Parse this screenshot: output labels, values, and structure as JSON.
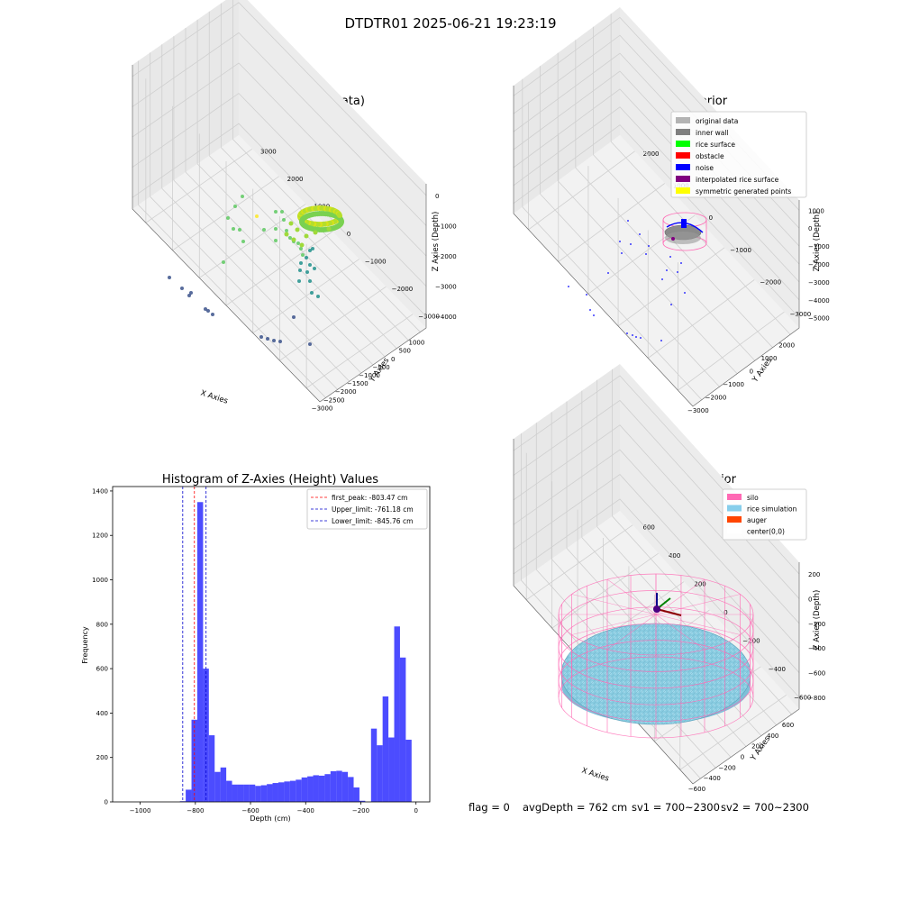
{
  "figure": {
    "suptitle": "DTDTR01 2025-06-21 19:23:19",
    "footer": {
      "flag": "flag = 0",
      "avg_depth": "avgDepth = 762 cm",
      "sv1": "sv1 = 700~2300",
      "sv2": "sv2 = 700~2300"
    }
  },
  "chart_data": [
    {
      "type": "scatter",
      "title": "3D Plot of Silo Interior(row data)",
      "xlabel": "X Axies",
      "ylabel": "Y Axies",
      "zlabel": "Z Axies (Depth)",
      "x_ticks": [
        "−3000",
        "−2500",
        "−2000",
        "−1500",
        "−1000",
        "−500",
        "0",
        "500",
        "1000"
      ],
      "y_ticks": [
        "−3000",
        "−2000",
        "−1000",
        "0",
        "1000",
        "2000",
        "3000"
      ],
      "z_ticks": [
        "0",
        "−1000",
        "−2000",
        "−3000",
        "−4000"
      ],
      "colormap": "viridis",
      "grid": true
    },
    {
      "type": "scatter",
      "title": "3D classify of Silo Interior",
      "xlabel": "X Axies",
      "ylabel": "Y Axies",
      "zlabel": "Z Axies (Depth)",
      "x_ticks": [
        "−3000",
        "−2000",
        "−1000",
        "0",
        "1000",
        "2000"
      ],
      "y_ticks": [
        "−3000",
        "−2000",
        "−1000",
        "0",
        "1000",
        "2000"
      ],
      "z_ticks": [
        "1000",
        "0",
        "−1000",
        "−2000",
        "−3000",
        "−4000",
        "−5000"
      ],
      "legend": [
        {
          "name": "original data",
          "color": "#b3b3b3"
        },
        {
          "name": "inner wall",
          "color": "#808080"
        },
        {
          "name": "rice surface",
          "color": "#00ff00"
        },
        {
          "name": "obstacle",
          "color": "#ff0000"
        },
        {
          "name": "noise",
          "color": "#0000ff"
        },
        {
          "name": "interpolated rice surface",
          "color": "#800080"
        },
        {
          "name": "symmetric generated points",
          "color": "#ffff00"
        }
      ],
      "legend_position": "top-right",
      "grid": true
    },
    {
      "type": "bar",
      "title": "Histogram of Z-Axies (Height) Values",
      "xlabel": "Depth (cm)",
      "ylabel": "Frequency",
      "xlim": [
        -1100,
        50
      ],
      "ylim": [
        0,
        1420
      ],
      "x_ticks": [
        -1000,
        -800,
        -600,
        -400,
        -200,
        0
      ],
      "y_ticks": [
        0,
        200,
        400,
        600,
        800,
        1000,
        1200,
        1400
      ],
      "bin_width": 21,
      "bin_starts": [
        -1087,
        -1066,
        -1045,
        -1024,
        -1003,
        -982,
        -961,
        -940,
        -919,
        -898,
        -877,
        -856,
        -835,
        -814,
        -793,
        -772,
        -751,
        -730,
        -709,
        -688,
        -667,
        -646,
        -625,
        -604,
        -583,
        -562,
        -541,
        -520,
        -499,
        -478,
        -457,
        -436,
        -415,
        -394,
        -373,
        -352,
        -331,
        -310,
        -289,
        -268,
        -247,
        -226,
        -205,
        -184,
        -163,
        -142,
        -121,
        -100,
        -79,
        -58,
        -37,
        -16
      ],
      "counts": [
        0,
        0,
        0,
        0,
        0,
        0,
        0,
        0,
        0,
        0,
        0,
        3,
        55,
        370,
        1350,
        600,
        300,
        135,
        155,
        95,
        78,
        78,
        78,
        78,
        72,
        75,
        80,
        85,
        88,
        92,
        95,
        100,
        110,
        115,
        120,
        118,
        125,
        138,
        140,
        135,
        112,
        65,
        5,
        0,
        330,
        255,
        475,
        290,
        790,
        650,
        280,
        0
      ],
      "bar_color": "#0000ff",
      "lines": [
        {
          "name": "first_peak: -803.47 cm",
          "x": -803.47,
          "color": "#ff0000"
        },
        {
          "name": "Upper_limit: -761.18 cm",
          "x": -761.18,
          "color": "#0000cc"
        },
        {
          "name": "Lower_limit: -845.76 cm",
          "x": -845.76,
          "color": "#0000cc"
        }
      ],
      "legend_position": "top-right",
      "grid": false
    },
    {
      "type": "scatter",
      "title": "3D simulation of Silo Interior",
      "xlabel": "X Axies",
      "ylabel": "Y Axies",
      "zlabel": "Z Axies (Depth)",
      "x_ticks": [
        "−600",
        "−400",
        "−200",
        "0",
        "200",
        "400",
        "600"
      ],
      "y_ticks": [
        "−600",
        "−400",
        "−200",
        "0",
        "200",
        "400",
        "600"
      ],
      "z_ticks": [
        "200",
        "0",
        "−200",
        "−400",
        "−600",
        "−800"
      ],
      "legend": [
        {
          "name": "silo",
          "color": "#ff69b4"
        },
        {
          "name": "rice simulation",
          "color": "#87ceeb"
        },
        {
          "name": "auger",
          "color": "#ff4500"
        },
        {
          "name": "center(0,0)",
          "color": "#ffffff"
        }
      ],
      "legend_position": "top-right",
      "grid": true
    }
  ]
}
